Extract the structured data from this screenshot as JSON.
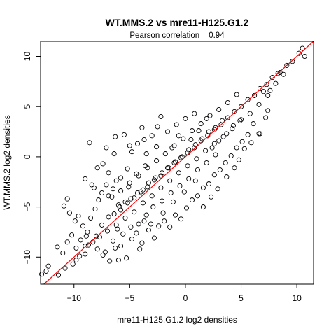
{
  "chart_data": {
    "type": "scatter",
    "title": "WT.MMS.2 vs mre11-H125.G1.2",
    "subtitle": "Pearson correlation =  0.94",
    "xlabel": "mre11-H125.G1.2 log2 densities",
    "ylabel": "WT.MMS.2 log2 densities",
    "xlim": [
      -13.0,
      11.5
    ],
    "ylim": [
      -12.7,
      11.5
    ],
    "x_ticks": [
      -10,
      -5,
      0,
      5,
      10
    ],
    "y_ticks": [
      -10,
      -5,
      0,
      5,
      10
    ],
    "x_tick_labels": [
      "−10",
      "−5",
      "0",
      "5",
      "10"
    ],
    "y_tick_labels": [
      "−10",
      "−5",
      "0",
      "5",
      "10"
    ],
    "grid": false,
    "reference_line": {
      "slope": 1,
      "intercept": 0,
      "color": "#ff0000"
    },
    "point_color": "#000000",
    "marker": "open-circle",
    "correlation": 0.94,
    "series": [
      {
        "points": [
          [
            -12.9,
            -11.7
          ],
          [
            -12.5,
            -11.4
          ],
          [
            -11.4,
            -11.8
          ],
          [
            -10.8,
            -11.1
          ],
          [
            -10.1,
            -10.7
          ],
          [
            -9.8,
            -10.3
          ],
          [
            -9.5,
            -9.9
          ],
          [
            -9.0,
            -9.7
          ],
          [
            -8.7,
            -8.8
          ],
          [
            -10.9,
            -4.9
          ],
          [
            -10.4,
            -5.6
          ],
          [
            -9.9,
            -6.4
          ],
          [
            -9.6,
            -5.9
          ],
          [
            -9.2,
            -6.9
          ],
          [
            -8.8,
            -7.5
          ],
          [
            -8.5,
            -6.1
          ],
          [
            -8.1,
            -5.2
          ],
          [
            -7.8,
            -4.3
          ],
          [
            -7.5,
            -3.6
          ],
          [
            -7.1,
            -2.8
          ],
          [
            -9.0,
            -2.2
          ],
          [
            -8.4,
            -2.8
          ],
          [
            -7.9,
            -1.1
          ],
          [
            -7.4,
            -0.7
          ],
          [
            -6.9,
            -1.6
          ],
          [
            -6.5,
            -3.2
          ],
          [
            -6.0,
            -4.8
          ],
          [
            -5.8,
            -2.1
          ],
          [
            -5.2,
            -1.2
          ],
          [
            -5.5,
            2.2
          ],
          [
            -4.8,
            0.5
          ],
          [
            -4.3,
            1.3
          ],
          [
            -3.9,
            2.9
          ],
          [
            -3.5,
            0.3
          ],
          [
            -3.0,
            2.1
          ],
          [
            -2.6,
            1.0
          ],
          [
            -2.2,
            4.0
          ],
          [
            -7.1,
            0.9
          ],
          [
            -8.6,
            1.4
          ],
          [
            -6.3,
            2.0
          ],
          [
            -7.2,
            -9.5
          ],
          [
            -6.8,
            -10.4
          ],
          [
            -6.3,
            -9.1
          ],
          [
            -5.8,
            -8.9
          ],
          [
            -5.3,
            -10.1
          ],
          [
            -4.8,
            -8.2
          ],
          [
            -4.4,
            -7.6
          ],
          [
            -3.9,
            -8.6
          ],
          [
            -3.3,
            -7.3
          ],
          [
            -2.8,
            -8.1
          ],
          [
            -2.4,
            -6.9
          ],
          [
            -1.9,
            -6.4
          ],
          [
            -1.4,
            -7.0
          ],
          [
            -0.9,
            -5.8
          ],
          [
            -0.4,
            -6.2
          ],
          [
            0.1,
            -5.1
          ],
          [
            0.6,
            -4.3
          ],
          [
            1.1,
            -3.9
          ],
          [
            1.6,
            -3.1
          ],
          [
            2.1,
            -2.7
          ],
          [
            2.6,
            -1.8
          ],
          [
            3.1,
            -1.3
          ],
          [
            3.6,
            -0.6
          ],
          [
            4.1,
            0.1
          ],
          [
            4.6,
            0.9
          ],
          [
            5.1,
            1.5
          ],
          [
            5.6,
            2.2
          ],
          [
            6.1,
            3.3
          ],
          [
            6.7,
            2.3
          ],
          [
            7.2,
            3.9
          ],
          [
            -5.8,
            -5.3
          ],
          [
            -5.2,
            -4.6
          ],
          [
            -4.6,
            -4.1
          ],
          [
            -4.0,
            -3.5
          ],
          [
            -3.4,
            -3.0
          ],
          [
            -2.8,
            -2.3
          ],
          [
            -2.2,
            -1.9
          ],
          [
            -1.6,
            -1.1
          ],
          [
            -1.0,
            -0.6
          ],
          [
            -0.4,
            -0.1
          ],
          [
            0.2,
            0.4
          ],
          [
            0.8,
            0.9
          ],
          [
            1.4,
            1.6
          ],
          [
            2.0,
            2.1
          ],
          [
            2.6,
            2.7
          ],
          [
            3.2,
            3.2
          ],
          [
            3.8,
            3.9
          ],
          [
            4.4,
            4.5
          ],
          [
            5.0,
            5.0
          ],
          [
            5.6,
            5.7
          ],
          [
            6.2,
            6.1
          ],
          [
            6.7,
            6.8
          ],
          [
            7.3,
            7.2
          ],
          [
            7.8,
            7.9
          ],
          [
            8.3,
            8.3
          ],
          [
            -7.5,
            -6.8
          ],
          [
            -6.9,
            -6.0
          ],
          [
            -6.4,
            -5.7
          ],
          [
            -5.9,
            -5.0
          ],
          [
            -5.4,
            -4.5
          ],
          [
            -4.9,
            -4.2
          ],
          [
            -4.3,
            -3.6
          ],
          [
            -3.8,
            -3.3
          ],
          [
            -3.3,
            -2.6
          ],
          [
            -2.7,
            -2.1
          ],
          [
            -2.1,
            -1.6
          ],
          [
            -1.5,
            -1.1
          ],
          [
            -0.9,
            -0.5
          ],
          [
            -0.3,
            0.0
          ],
          [
            0.3,
            0.7
          ],
          [
            0.9,
            1.2
          ],
          [
            1.5,
            1.8
          ],
          [
            2.1,
            2.5
          ],
          [
            2.7,
            2.9
          ],
          [
            3.3,
            3.6
          ],
          [
            -8.0,
            -7.9
          ],
          [
            -7.0,
            -7.4
          ],
          [
            -6.2,
            -6.8
          ],
          [
            -5.4,
            -6.1
          ],
          [
            -4.6,
            -5.5
          ],
          [
            -3.8,
            -4.6
          ],
          [
            -3.0,
            -3.9
          ],
          [
            -2.2,
            -3.1
          ],
          [
            -1.4,
            -2.4
          ],
          [
            -0.6,
            -1.6
          ],
          [
            0.2,
            -0.9
          ],
          [
            1.0,
            -0.2
          ],
          [
            1.8,
            0.6
          ],
          [
            2.6,
            1.3
          ],
          [
            3.4,
            2.0
          ],
          [
            4.2,
            2.8
          ],
          [
            5.0,
            3.7
          ],
          [
            5.8,
            4.3
          ],
          [
            6.6,
            5.2
          ],
          [
            7.4,
            6.1
          ],
          [
            -6.6,
            -4.0
          ],
          [
            -5.8,
            -3.4
          ],
          [
            -5.0,
            -2.6
          ],
          [
            -4.2,
            -1.9
          ],
          [
            -3.4,
            -1.1
          ],
          [
            -2.6,
            -0.4
          ],
          [
            -1.8,
            0.3
          ],
          [
            -1.0,
            1.1
          ],
          [
            -0.2,
            1.8
          ],
          [
            0.6,
            2.6
          ],
          [
            1.4,
            3.3
          ],
          [
            2.2,
            4.1
          ],
          [
            3.0,
            4.7
          ],
          [
            3.8,
            5.4
          ],
          [
            4.6,
            6.2
          ],
          [
            -4.2,
            -6.7
          ],
          [
            -3.5,
            -5.8
          ],
          [
            -2.9,
            -5.0
          ],
          [
            -2.1,
            -4.4
          ],
          [
            -1.3,
            -3.6
          ],
          [
            -0.5,
            -2.9
          ],
          [
            0.3,
            -2.2
          ],
          [
            1.1,
            -1.3
          ],
          [
            1.9,
            -0.6
          ],
          [
            2.7,
            0.2
          ],
          [
            -9.4,
            -8.3
          ],
          [
            -8.9,
            -7.9
          ],
          [
            -8.3,
            -8.5
          ],
          [
            -7.7,
            -8.0
          ],
          [
            -7.9,
            -9.2
          ],
          [
            -6.5,
            -8.4
          ],
          [
            -5.6,
            -7.7
          ],
          [
            -4.9,
            -7.0
          ],
          [
            -6.1,
            -7.2
          ],
          [
            -3.7,
            -6.4
          ],
          [
            -6.9,
            -3.9
          ],
          [
            -6.2,
            -2.4
          ],
          [
            -5.1,
            -3.0
          ],
          [
            -4.4,
            -1.7
          ],
          [
            -3.6,
            -0.9
          ],
          [
            -1.2,
            0.9
          ],
          [
            -0.6,
            2.1
          ],
          [
            0.5,
            1.7
          ],
          [
            1.2,
            2.6
          ],
          [
            1.9,
            3.8
          ],
          [
            2.4,
            0.9
          ],
          [
            3.0,
            1.6
          ],
          [
            3.7,
            2.3
          ],
          [
            4.3,
            3.1
          ],
          [
            4.9,
            3.6
          ],
          [
            0.9,
            -2.4
          ],
          [
            -0.1,
            -3.5
          ],
          [
            -1.1,
            -4.5
          ],
          [
            -2.0,
            -5.6
          ],
          [
            -3.1,
            -6.7
          ],
          [
            8.5,
            8.4
          ],
          [
            8.8,
            8.2
          ],
          [
            9.1,
            9.1
          ],
          [
            9.6,
            9.5
          ],
          [
            10.2,
            10.3
          ],
          [
            10.5,
            10.8
          ],
          [
            10.7,
            10.0
          ],
          [
            8.1,
            7.3
          ],
          [
            7.6,
            6.6
          ],
          [
            7.0,
            6.5
          ],
          [
            -12.3,
            -10.9
          ],
          [
            -11.0,
            -9.6
          ],
          [
            -11.5,
            -9.0
          ],
          [
            -10.6,
            -8.5
          ],
          [
            -10.2,
            -7.8
          ],
          [
            -9.8,
            -9.1
          ],
          [
            -9.0,
            -8.9
          ],
          [
            -7.4,
            -9.8
          ],
          [
            -6.0,
            -10.3
          ],
          [
            -4.1,
            -9.2
          ],
          [
            -10.6,
            -4.2
          ],
          [
            -8.2,
            -3.1
          ],
          [
            -6.4,
            0.3
          ],
          [
            -5.0,
            1.1
          ],
          [
            -3.7,
            1.7
          ],
          [
            -2.5,
            3.0
          ],
          [
            -1.6,
            2.5
          ],
          [
            -0.8,
            3.2
          ],
          [
            0.0,
            3.8
          ],
          [
            0.8,
            4.3
          ],
          [
            4.4,
            -1.1
          ],
          [
            3.7,
            -2.0
          ],
          [
            2.9,
            -3.2
          ],
          [
            2.3,
            -4.0
          ],
          [
            1.6,
            -5.0
          ],
          [
            6.6,
            2.3
          ],
          [
            5.3,
            0.8
          ],
          [
            4.8,
            -0.3
          ],
          [
            5.9,
            1.4
          ],
          [
            7.4,
            4.6
          ]
        ]
      }
    ]
  }
}
